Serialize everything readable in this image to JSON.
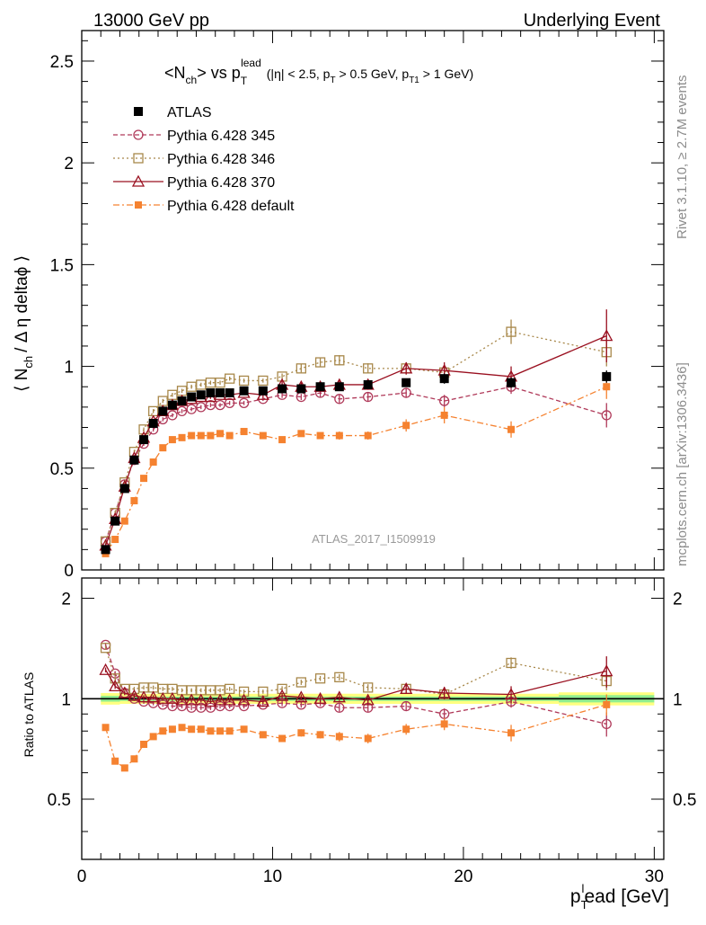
{
  "header": {
    "left": "13000 GeV pp",
    "right": "Underlying Event"
  },
  "side_labels": {
    "rivet": "Rivet 3.1.10, ≥ 2.7M events",
    "mcplots": "mcplots.cern.ch [arXiv:1306.3436]"
  },
  "chart_data": {
    "type": "scatter",
    "title_parts": {
      "main": "<N",
      "ch": "ch",
      "vs": "> vs p",
      "sub_T": "T",
      "sup_lead": "lead",
      "cut1": "(|η| < 2.5, p",
      "cut1_sub": "T",
      "cut2": " > 0.5 GeV, p",
      "cut2_sub": "T1",
      "cut3": " > 1 GeV)"
    },
    "ylabel_parts": {
      "pre": "⟨ N",
      "sub": "ch",
      "post": "/ Δ η deltaϕ ⟩"
    },
    "xlabel_parts": {
      "p": "p",
      "sub": "T",
      "sup": "l",
      "rest": "ead [GeV]"
    },
    "ratio_ylabel": "Ratio to ATLAS",
    "watermark": "ATLAS_2017_I1509919",
    "xlim": [
      0,
      30.5
    ],
    "ylim_main": [
      0,
      2.65
    ],
    "ylim_ratio": [
      0.33,
      2.3
    ],
    "x_ticks": [
      "0",
      "10",
      "20",
      "30"
    ],
    "y_ticks_main": [
      "0",
      "0.5",
      "1",
      "1.5",
      "2",
      "2.5"
    ],
    "y_ticks_ratio": [
      "0.5",
      "1",
      "2"
    ],
    "x": [
      1.25,
      1.75,
      2.25,
      2.75,
      3.25,
      3.75,
      4.25,
      4.75,
      5.25,
      5.75,
      6.25,
      6.75,
      7.25,
      7.75,
      8.5,
      9.5,
      10.5,
      11.5,
      12.5,
      13.5,
      15.0,
      17.0,
      19.0,
      22.5,
      27.5
    ],
    "atlas": [
      0.1,
      0.24,
      0.4,
      0.54,
      0.64,
      0.72,
      0.78,
      0.81,
      0.83,
      0.85,
      0.86,
      0.87,
      0.87,
      0.87,
      0.88,
      0.88,
      0.89,
      0.89,
      0.9,
      0.9,
      0.91,
      0.92,
      0.94,
      0.92,
      0.95
    ],
    "atlas_err": [
      0.01,
      0.01,
      0.01,
      0.01,
      0.01,
      0.01,
      0.01,
      0.01,
      0.01,
      0.01,
      0.01,
      0.01,
      0.01,
      0.01,
      0.01,
      0.01,
      0.015,
      0.015,
      0.015,
      0.02,
      0.02,
      0.02,
      0.025,
      0.025,
      0.03
    ],
    "series": [
      {
        "name": "ATLAS",
        "style": "data",
        "color": "#000000",
        "values": [
          0.1,
          0.24,
          0.4,
          0.54,
          0.64,
          0.72,
          0.78,
          0.81,
          0.83,
          0.85,
          0.86,
          0.87,
          0.87,
          0.87,
          0.88,
          0.88,
          0.89,
          0.89,
          0.9,
          0.9,
          0.91,
          0.92,
          0.94,
          0.92,
          0.95
        ],
        "errors": [
          0.01,
          0.01,
          0.01,
          0.01,
          0.01,
          0.01,
          0.01,
          0.01,
          0.01,
          0.01,
          0.01,
          0.01,
          0.01,
          0.01,
          0.01,
          0.01,
          0.015,
          0.015,
          0.015,
          0.02,
          0.02,
          0.02,
          0.025,
          0.025,
          0.03
        ]
      },
      {
        "name": "Pythia 6.428 345",
        "style": "circle-dashed",
        "color": "#b03a5a",
        "values": [
          0.14,
          0.28,
          0.42,
          0.54,
          0.62,
          0.69,
          0.74,
          0.76,
          0.78,
          0.79,
          0.8,
          0.81,
          0.81,
          0.82,
          0.82,
          0.84,
          0.86,
          0.85,
          0.87,
          0.84,
          0.85,
          0.87,
          0.83,
          0.9,
          0.76
        ],
        "errors": [
          0.01,
          0.01,
          0.01,
          0.01,
          0.01,
          0.01,
          0.01,
          0.01,
          0.01,
          0.01,
          0.01,
          0.01,
          0.01,
          0.01,
          0.01,
          0.01,
          0.015,
          0.015,
          0.02,
          0.02,
          0.02,
          0.025,
          0.03,
          0.035,
          0.06
        ],
        "ratio": [
          1.45,
          1.19,
          1.04,
          1.0,
          0.98,
          0.97,
          0.96,
          0.95,
          0.95,
          0.94,
          0.94,
          0.94,
          0.95,
          0.95,
          0.95,
          0.96,
          0.97,
          0.96,
          0.97,
          0.94,
          0.94,
          0.95,
          0.9,
          0.98,
          0.84
        ],
        "ratio_errors": [
          0.02,
          0.02,
          0.015,
          0.015,
          0.015,
          0.015,
          0.015,
          0.015,
          0.015,
          0.015,
          0.015,
          0.015,
          0.015,
          0.015,
          0.015,
          0.015,
          0.02,
          0.02,
          0.02,
          0.025,
          0.025,
          0.03,
          0.035,
          0.04,
          0.07
        ]
      },
      {
        "name": "Pythia 6.428 346",
        "style": "square-dotted",
        "color": "#a8884a",
        "values": [
          0.14,
          0.28,
          0.43,
          0.58,
          0.69,
          0.78,
          0.83,
          0.86,
          0.88,
          0.9,
          0.91,
          0.92,
          0.92,
          0.94,
          0.93,
          0.93,
          0.95,
          0.99,
          1.02,
          1.03,
          0.99,
          0.99,
          0.97,
          1.17,
          1.07
        ],
        "errors": [
          0.01,
          0.01,
          0.01,
          0.01,
          0.01,
          0.01,
          0.01,
          0.01,
          0.01,
          0.01,
          0.01,
          0.01,
          0.01,
          0.01,
          0.01,
          0.01,
          0.015,
          0.02,
          0.02,
          0.025,
          0.025,
          0.03,
          0.035,
          0.06,
          0.07
        ],
        "ratio": [
          1.42,
          1.15,
          1.07,
          1.07,
          1.08,
          1.08,
          1.07,
          1.07,
          1.06,
          1.06,
          1.06,
          1.06,
          1.06,
          1.07,
          1.05,
          1.05,
          1.07,
          1.12,
          1.15,
          1.16,
          1.08,
          1.07,
          1.03,
          1.28,
          1.13
        ],
        "ratio_errors": [
          0.02,
          0.02,
          0.015,
          0.015,
          0.015,
          0.015,
          0.015,
          0.015,
          0.015,
          0.015,
          0.015,
          0.015,
          0.015,
          0.015,
          0.015,
          0.015,
          0.02,
          0.02,
          0.02,
          0.025,
          0.025,
          0.03,
          0.035,
          0.05,
          0.07
        ]
      },
      {
        "name": "Pythia 6.428 370",
        "style": "triangle-solid",
        "color": "#9a1020",
        "values": [
          0.12,
          0.25,
          0.41,
          0.55,
          0.65,
          0.73,
          0.78,
          0.81,
          0.83,
          0.84,
          0.85,
          0.85,
          0.86,
          0.86,
          0.87,
          0.86,
          0.91,
          0.9,
          0.9,
          0.91,
          0.91,
          0.99,
          0.98,
          0.95,
          1.15
        ],
        "errors": [
          0.01,
          0.01,
          0.01,
          0.01,
          0.01,
          0.01,
          0.01,
          0.01,
          0.01,
          0.01,
          0.01,
          0.01,
          0.01,
          0.01,
          0.01,
          0.015,
          0.02,
          0.02,
          0.02,
          0.025,
          0.025,
          0.03,
          0.04,
          0.05,
          0.13
        ],
        "ratio": [
          1.22,
          1.09,
          1.04,
          1.02,
          1.01,
          1.01,
          1.0,
          1.0,
          0.99,
          0.99,
          0.99,
          0.98,
          0.99,
          0.99,
          0.99,
          0.98,
          1.02,
          1.01,
          1.0,
          1.01,
          0.99,
          1.07,
          1.04,
          1.03,
          1.21
        ],
        "ratio_errors": [
          0.02,
          0.02,
          0.015,
          0.015,
          0.015,
          0.015,
          0.015,
          0.015,
          0.015,
          0.015,
          0.015,
          0.015,
          0.015,
          0.015,
          0.015,
          0.02,
          0.02,
          0.02,
          0.025,
          0.025,
          0.03,
          0.035,
          0.045,
          0.06,
          0.13
        ]
      },
      {
        "name": "Pythia 6.428 default",
        "style": "filled-square-dashdot",
        "color": "#f58230",
        "values": [
          0.08,
          0.15,
          0.24,
          0.34,
          0.45,
          0.53,
          0.6,
          0.64,
          0.65,
          0.66,
          0.66,
          0.66,
          0.67,
          0.66,
          0.68,
          0.66,
          0.64,
          0.67,
          0.66,
          0.66,
          0.66,
          0.71,
          0.76,
          0.69,
          0.9
        ],
        "errors": [
          0.005,
          0.005,
          0.005,
          0.005,
          0.005,
          0.005,
          0.005,
          0.005,
          0.005,
          0.005,
          0.005,
          0.005,
          0.005,
          0.005,
          0.01,
          0.01,
          0.01,
          0.015,
          0.015,
          0.02,
          0.02,
          0.03,
          0.04,
          0.04,
          0.06
        ],
        "ratio": [
          0.82,
          0.65,
          0.62,
          0.66,
          0.73,
          0.77,
          0.8,
          0.81,
          0.82,
          0.81,
          0.81,
          0.8,
          0.8,
          0.8,
          0.81,
          0.78,
          0.76,
          0.79,
          0.78,
          0.77,
          0.76,
          0.81,
          0.84,
          0.79,
          0.96
        ],
        "ratio_errors": [
          0.01,
          0.01,
          0.01,
          0.01,
          0.01,
          0.01,
          0.01,
          0.01,
          0.01,
          0.01,
          0.01,
          0.01,
          0.01,
          0.01,
          0.015,
          0.015,
          0.015,
          0.02,
          0.02,
          0.025,
          0.025,
          0.03,
          0.035,
          0.045,
          0.07
        ]
      }
    ],
    "uncertainty_band": {
      "colors": [
        "#ffff80",
        "#90ee90"
      ],
      "segments": [
        {
          "x": [
            1.0,
            2.0
          ],
          "outer": [
            0.96,
            1.04
          ],
          "inner": [
            0.98,
            1.02
          ]
        },
        {
          "x": [
            2.0,
            25.0
          ],
          "outer": [
            0.965,
            1.035
          ],
          "inner": [
            0.985,
            1.015
          ]
        },
        {
          "x": [
            25.0,
            30.0
          ],
          "outer": [
            0.955,
            1.045
          ],
          "inner": [
            0.975,
            1.025
          ]
        }
      ]
    },
    "grid": false,
    "legend_position": "top-left"
  }
}
